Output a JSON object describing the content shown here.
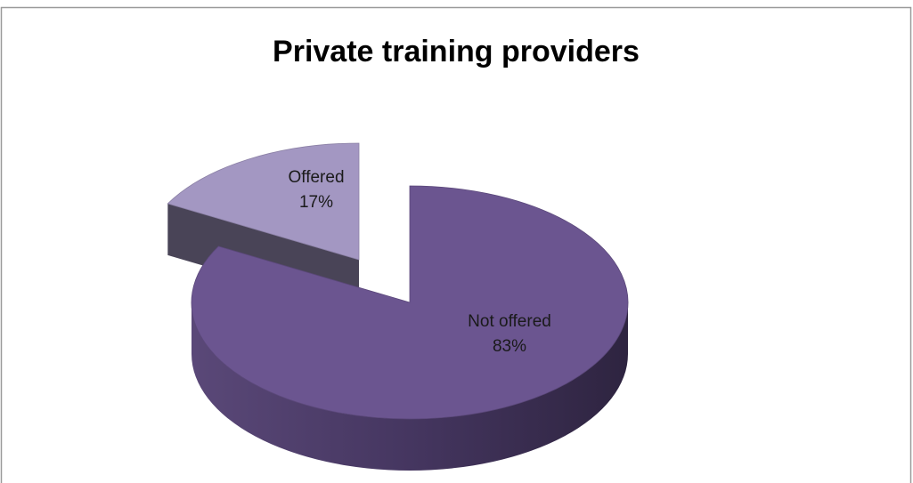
{
  "chart_data": {
    "type": "pie",
    "title": "Private training providers",
    "categories": [
      "Offered",
      "Not offered"
    ],
    "values": [
      17,
      83
    ],
    "value_labels": [
      "17%",
      "83%"
    ],
    "colors": [
      "#a397c2",
      "#6b5590"
    ]
  }
}
